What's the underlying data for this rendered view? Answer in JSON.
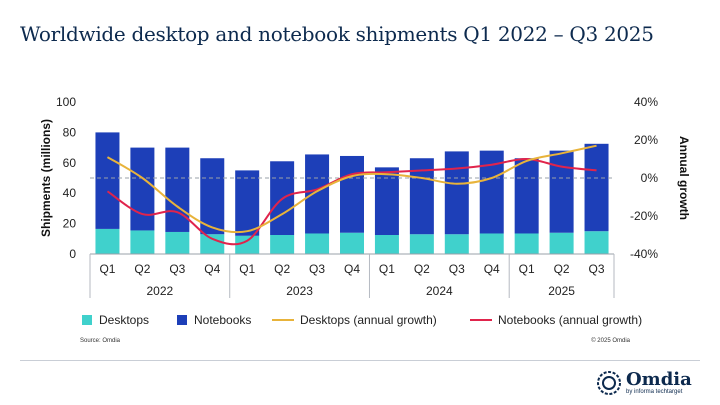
{
  "title": "Worldwide desktop and notebook shipments Q1 2022 – Q3 2025",
  "source": "Source: Omdia",
  "copyright": "© 2025 Omdia",
  "logo": {
    "wordmark": "Omdia",
    "tagline": "by informa techtarget"
  },
  "colors": {
    "desktops": "#40d1cc",
    "notebooks": "#1d3fb8",
    "desktops_growth": "#e8b33a",
    "notebooks_growth": "#e0244c"
  },
  "chart_data": {
    "type": "bar",
    "stacked": true,
    "categories": [
      "Q1",
      "Q2",
      "Q3",
      "Q4",
      "Q1",
      "Q2",
      "Q3",
      "Q4",
      "Q1",
      "Q2",
      "Q3",
      "Q4",
      "Q1",
      "Q2",
      "Q3"
    ],
    "years": [
      {
        "label": "2022",
        "start": 0,
        "end": 3
      },
      {
        "label": "2023",
        "start": 4,
        "end": 7
      },
      {
        "label": "2024",
        "start": 8,
        "end": 11
      },
      {
        "label": "2025",
        "start": 12,
        "end": 14
      }
    ],
    "ylabel": "Shipments (millions)",
    "y2label": "Annual growth",
    "ylim": [
      0,
      100
    ],
    "yticks": [
      0,
      20,
      40,
      60,
      80,
      100
    ],
    "y2lim": [
      -40,
      40
    ],
    "y2ticks": [
      -40,
      -20,
      0,
      20,
      40
    ],
    "y2tick_labels": [
      "-40%",
      "-20%",
      "0%",
      "20%",
      "40%"
    ],
    "zero_line": "dashed",
    "series": [
      {
        "name": "Desktops",
        "kind": "bar",
        "axis": "left",
        "values": [
          16.5,
          15.5,
          14.5,
          13.0,
          12.0,
          12.5,
          13.5,
          14.0,
          12.5,
          13.0,
          13.0,
          13.5,
          13.5,
          14.0,
          15.0
        ]
      },
      {
        "name": "Notebooks",
        "kind": "bar",
        "axis": "left",
        "values": [
          63.5,
          54.5,
          55.5,
          50.0,
          43.0,
          48.5,
          52.0,
          50.5,
          44.5,
          50.0,
          54.5,
          54.5,
          49.5,
          54.0,
          57.5
        ]
      },
      {
        "name": "Desktops (annual growth)",
        "kind": "line",
        "axis": "right",
        "values": [
          11,
          0,
          -15,
          -26,
          -28,
          -19,
          -7,
          1,
          2,
          0,
          -3,
          0,
          9,
          13,
          17
        ]
      },
      {
        "name": "Notebooks (annual growth)",
        "kind": "line",
        "axis": "right",
        "values": [
          -7,
          -19,
          -18,
          -32,
          -33,
          -11,
          -6,
          2,
          3,
          4,
          5,
          7,
          10,
          6,
          4
        ]
      }
    ],
    "legend_position": "bottom"
  }
}
